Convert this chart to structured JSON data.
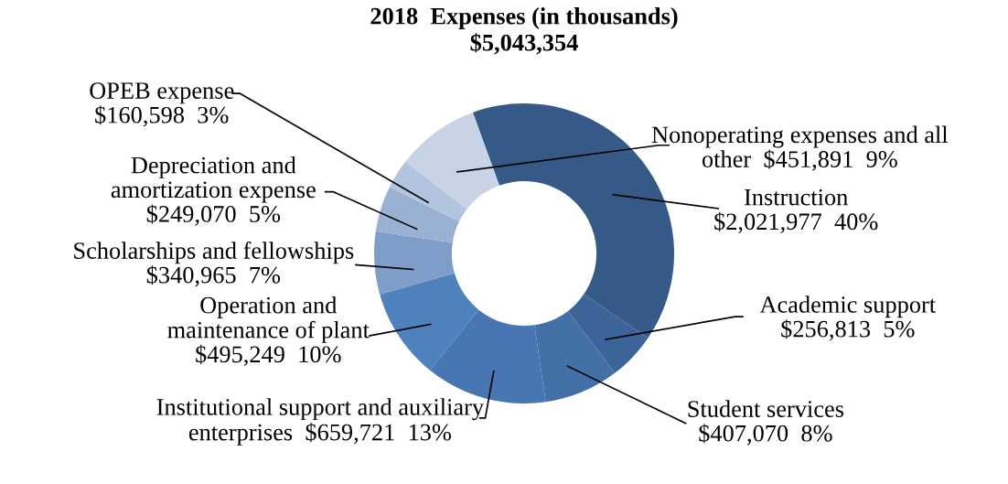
{
  "chart_data": {
    "type": "donut",
    "title": "2018  Expenses (in thousands)",
    "subtitle": "$5,043,354",
    "categories": [
      "Instruction",
      "Academic support",
      "Student services",
      "Institutional support and auxiliary\nenterprises",
      "Operation and\nmaintenance of plant",
      "Scholarships and fellowships",
      "Depreciation and\namortization expense",
      "OPEB expense",
      "Nonoperating expenses and all\nother"
    ],
    "values": [
      2021977,
      256813,
      407070,
      659721,
      495249,
      340965,
      249070,
      160598,
      451891
    ],
    "value_labels": [
      "$2,021,977  40%",
      "$256,813  5%",
      "$407,070  8%",
      "$659,721  13%",
      "$495,249  10%",
      "$340,965  7%",
      "$249,070  5%",
      "$160,598  3%",
      "$451,891  9%"
    ],
    "colors": [
      "#355a87",
      "#3d6499",
      "#4470a8",
      "#4876b3",
      "#4f81bd",
      "#7f9dc9",
      "#9bb1d4",
      "#b3c4e0",
      "#c8d3e5"
    ],
    "legend": false
  }
}
